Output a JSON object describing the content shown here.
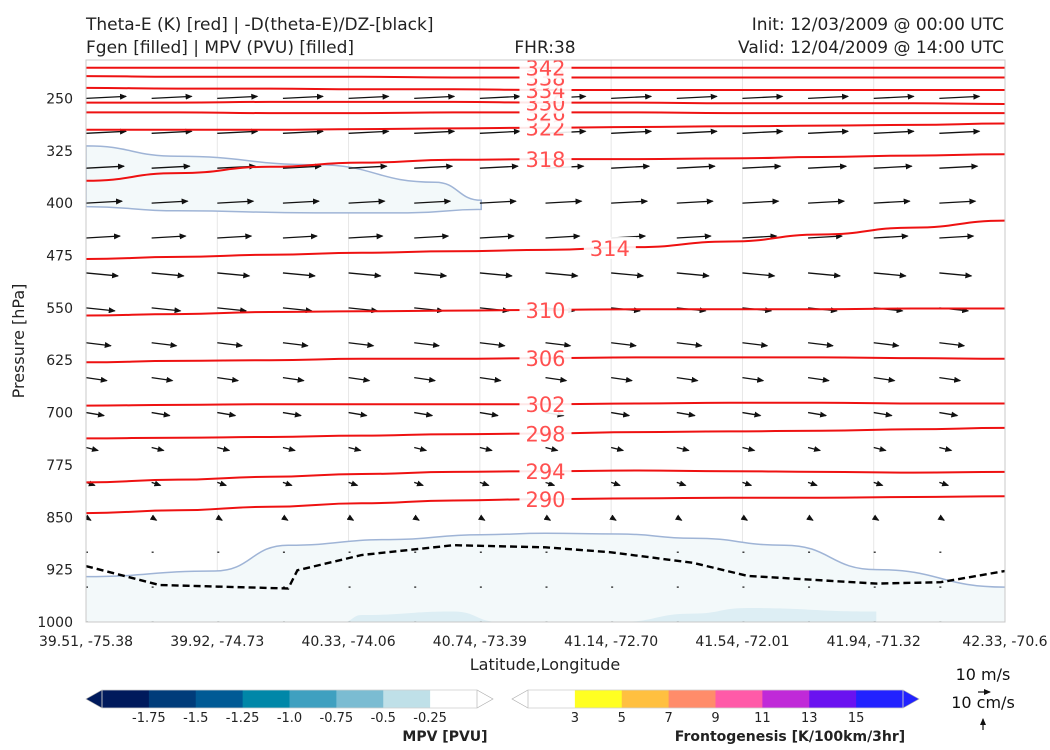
{
  "header": {
    "left_line1": "Theta-E (K) [red] | -D(theta-E)/DZ-[black]",
    "left_line2": "Fgen [filled] | MPV (PVU) [filled]",
    "center": "FHR:38",
    "right_line1": "Init: 12/03/2009 @ 00:00 UTC",
    "right_line2": "Valid: 12/04/2009 @ 14:00 UTC"
  },
  "colors": {
    "theta_e": "#ee1111",
    "contour_label": "#ff5050",
    "mpv_contour": "#9fb4d6",
    "mpv_fill": "#f3f9fa",
    "mpv_fill_deeper": "#ddeef4",
    "dashed": "#000000",
    "vectors": "#111111"
  },
  "chart_data": {
    "type": "cross-section",
    "xlabel": "Latitude,Longitude",
    "ylabel": "Pressure [hPa]",
    "x_ticks": [
      "39.51, -75.38",
      "39.92, -74.73",
      "40.33, -74.06",
      "40.74, -73.39",
      "41.14, -72.70",
      "41.54, -72.01",
      "41.94, -71.32",
      "42.33, -70.6"
    ],
    "y_ticks": [
      "250",
      "325",
      "400",
      "475",
      "550",
      "625",
      "700",
      "775",
      "850",
      "925",
      "1000"
    ],
    "ylim": [
      1000,
      195
    ],
    "y_scale": "linear, inverted",
    "theta_e_contours": [
      {
        "label": "290",
        "p": [
          844,
          840,
          835,
          830,
          826,
          824,
          823,
          822,
          822,
          821,
          820
        ]
      },
      {
        "label": "294",
        "p": [
          800,
          796,
          792,
          788,
          785,
          784,
          783,
          784,
          785,
          786,
          785
        ]
      },
      {
        "label": "298",
        "p": [
          737,
          736,
          735,
          733,
          731,
          730,
          728,
          727,
          726,
          724,
          722
        ]
      },
      {
        "label": "302",
        "p": [
          690,
          689,
          688,
          688,
          688,
          688,
          687,
          686,
          686,
          687,
          687
        ]
      },
      {
        "label": "306",
        "p": [
          628,
          626,
          625,
          623,
          623,
          622,
          621,
          621,
          621,
          622,
          623
        ]
      },
      {
        "label": "310",
        "p": [
          561,
          559,
          556,
          555,
          554,
          553,
          552,
          552,
          552,
          551,
          551
        ]
      },
      {
        "label": "314",
        "p": [
          480,
          477,
          474,
          471,
          469,
          467,
          463,
          455,
          445,
          435,
          425
        ]
      },
      {
        "label": "318",
        "p": [
          368,
          357,
          348,
          342,
          338,
          337,
          337,
          336,
          334,
          332,
          330
        ]
      },
      {
        "label": "322",
        "p": [
          295,
          295,
          295,
          294,
          293,
          292,
          291,
          290,
          289,
          288,
          286
        ]
      },
      {
        "label": "326",
        "p": [
          270,
          270,
          271,
          271,
          270,
          270,
          270,
          271,
          271,
          271,
          271
        ]
      },
      {
        "label": "330",
        "p": [
          256,
          256,
          255,
          255,
          255,
          256,
          256,
          257,
          257,
          257,
          258
        ]
      },
      {
        "label": "334",
        "p": [
          235,
          236,
          236,
          237,
          237,
          238,
          238,
          238,
          238,
          238,
          238
        ]
      },
      {
        "label": "338",
        "p": [
          218,
          219,
          219,
          219,
          220,
          220,
          220,
          220,
          220,
          220,
          220
        ]
      },
      {
        "label": "342",
        "p": [
          206,
          206,
          206,
          206,
          206,
          206,
          206,
          206,
          206,
          206,
          206
        ]
      }
    ],
    "mpv_region_upper": {
      "x": [
        0,
        0.1,
        0.25,
        0.38,
        0.43,
        0.43,
        0.35,
        0.25,
        0.1,
        0
      ],
      "p": [
        318,
        333,
        345,
        370,
        396,
        409,
        414,
        414,
        411,
        405
      ]
    },
    "mpv_region_lower_top": {
      "x": [
        0,
        0.14,
        0.22,
        0.33,
        0.43,
        0.5,
        0.58,
        0.66,
        0.76,
        0.86,
        1.0
      ],
      "p": [
        935,
        927,
        890,
        882,
        875,
        873,
        874,
        880,
        890,
        925,
        950
      ]
    },
    "dashed_line": {
      "x": [
        0,
        0.08,
        0.22,
        0.23,
        0.3,
        0.4,
        0.5,
        0.57,
        0.66,
        0.72,
        0.86,
        0.93,
        1.0
      ],
      "p": [
        920,
        947,
        952,
        926,
        904,
        890,
        893,
        900,
        915,
        934,
        945,
        943,
        927
      ]
    },
    "vector_levels": [
      250,
      300,
      350,
      400,
      450,
      500,
      550,
      600,
      650,
      700,
      750,
      800,
      850,
      900,
      950,
      1000
    ],
    "vector_lengths": [
      1.0,
      1.0,
      0.95,
      0.9,
      0.85,
      0.8,
      0.72,
      0.62,
      0.52,
      0.45,
      0.3,
      0.22,
      0.12,
      0.06,
      0.04,
      0.03
    ],
    "colorbar_mpv": {
      "title": "MPV [PVU]",
      "ticks": [
        "-1.75",
        "-1.5",
        "-1.25",
        "-1.0",
        "-0.75",
        "-0.5",
        "-0.25"
      ],
      "colors": [
        "#001a5c",
        "#003c7a",
        "#005a95",
        "#0087a8",
        "#3fa0c0",
        "#7bbcd2",
        "#bfe0e8",
        "#ffffff"
      ]
    },
    "colorbar_fgen": {
      "title": "Frontogenesis [K/100km/3hr]",
      "ticks": [
        "3",
        "5",
        "7",
        "9",
        "11",
        "13",
        "15"
      ],
      "colors": [
        "#ffffff",
        "#ffff22",
        "#ffc040",
        "#ff8c6a",
        "#ff5aa8",
        "#c02ad8",
        "#6a12f0",
        "#2222ff"
      ]
    },
    "reference_vector": {
      "line1": "10 m/s",
      "line2": "10 cm/s"
    }
  }
}
